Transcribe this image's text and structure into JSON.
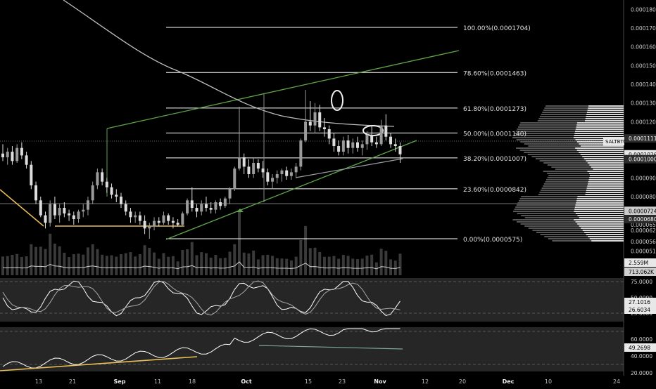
{
  "symbol": "SALTBTC",
  "colors": {
    "background": "#000000",
    "panel_bg": "#262626",
    "panel_dark": "#161616",
    "candle_up": "#9a9a9a",
    "candle_down": "#dddddd",
    "fib_line": "#ffffff",
    "channel": "#5fa64a",
    "yellow_trend": "#e8c05a",
    "ma": "#bdbdbd",
    "grid": "#333333",
    "text": "#d0d0d0"
  },
  "fib_levels": [
    {
      "pct": "100.00%",
      "price": 0.0001704,
      "label": "100.00%(0.0001704)"
    },
    {
      "pct": "78.60%",
      "price": 0.0001463,
      "label": "78.60%(0.0001463)"
    },
    {
      "pct": "61.80%",
      "price": 0.0001273,
      "label": "61.80%(0.0001273)"
    },
    {
      "pct": "50.00%",
      "price": 0.000114,
      "label": "50.00%(0.0001140)"
    },
    {
      "pct": "38.20%",
      "price": 0.0001007,
      "label": "38.20%(0.0001007)"
    },
    {
      "pct": "23.60%",
      "price": 8.42e-05,
      "label": "23.60%(0.0000842)"
    },
    {
      "pct": "0.00%",
      "price": 5.75e-05,
      "label": "0.00%(0.0000575)"
    }
  ],
  "price_axis": {
    "ticks": [
      "0.0001800",
      "0.0001700",
      "0.0001600",
      "0.0001500",
      "0.0001400",
      "0.0001300",
      "0.0001200",
      "0.0000900",
      "0.0000800",
      "0.0000650",
      "0.0000620",
      "0.0000560",
      "0.0000510"
    ],
    "highlight_labels": [
      {
        "text": "0.0001111",
        "value": 0.0001111
      },
      {
        "text": "0.0001026",
        "value": 0.0001026
      },
      {
        "text": "0.0001000",
        "value": 0.0001
      },
      {
        "text": "0.0000724",
        "value": 7.24e-05
      },
      {
        "text": "0.0000680",
        "value": 6.8e-05
      }
    ]
  },
  "volume_axis": {
    "labels": [
      "2.559M",
      "713.062K"
    ]
  },
  "stoch_panel": {
    "ticks": [
      "75.0000",
      "50.0000",
      "25.0000"
    ],
    "badges": [
      "27.1016",
      "26.6034"
    ]
  },
  "rsi_panel": {
    "ticks": [
      "60.0000",
      "40.0000",
      "20.0000"
    ],
    "badges": [
      "49.2698"
    ]
  },
  "time_axis": {
    "labels": [
      "13",
      "21",
      "Sep",
      "11",
      "18",
      "Oct",
      "15",
      "23",
      "Nov",
      "12",
      "20",
      "Dec",
      "10",
      "24"
    ]
  },
  "chart_data": {
    "type": "candlestick",
    "title": "SALTBTC",
    "x_labels": [
      "13",
      "21",
      "Sep",
      "11",
      "18",
      "Oct",
      "15",
      "23",
      "Nov",
      "12",
      "20",
      "Dec",
      "10",
      "24"
    ],
    "y_range": [
      5e-05,
      0.00019
    ],
    "candles": [
      {
        "o": 0.000103,
        "h": 0.000108,
        "l": 9.9e-05,
        "c": 0.000101
      },
      {
        "o": 0.000101,
        "h": 0.000106,
        "l": 9.7e-05,
        "c": 0.000104
      },
      {
        "o": 0.000104,
        "h": 0.000107,
        "l": 9.7e-05,
        "c": 9.9e-05
      },
      {
        "o": 9.9e-05,
        "h": 0.000108,
        "l": 9.8e-05,
        "c": 0.000106
      },
      {
        "o": 0.000106,
        "h": 0.000109,
        "l": 0.0001,
        "c": 0.000102
      },
      {
        "o": 0.000102,
        "h": 0.000104,
        "l": 9.5e-05,
        "c": 9.7e-05
      },
      {
        "o": 9.7e-05,
        "h": 9.9e-05,
        "l": 8.4e-05,
        "c": 8.6e-05
      },
      {
        "o": 8.6e-05,
        "h": 8.8e-05,
        "l": 7.6e-05,
        "c": 7.8e-05
      },
      {
        "o": 7.8e-05,
        "h": 8e-05,
        "l": 6.9e-05,
        "c": 7e-05
      },
      {
        "o": 7e-05,
        "h": 7.2e-05,
        "l": 6.3e-05,
        "c": 6.6e-05
      },
      {
        "o": 6.6e-05,
        "h": 7.8e-05,
        "l": 6.4e-05,
        "c": 7.6e-05
      },
      {
        "o": 7.6e-05,
        "h": 8e-05,
        "l": 6.8e-05,
        "c": 7e-05
      },
      {
        "o": 7e-05,
        "h": 7.6e-05,
        "l": 6.6e-05,
        "c": 7.4e-05
      },
      {
        "o": 7.4e-05,
        "h": 7.7e-05,
        "l": 6.9e-05,
        "c": 7.1e-05
      },
      {
        "o": 7.1e-05,
        "h": 7.3e-05,
        "l": 6.7e-05,
        "c": 7e-05
      },
      {
        "o": 7e-05,
        "h": 7.2e-05,
        "l": 6.5e-05,
        "c": 6.8e-05
      },
      {
        "o": 6.8e-05,
        "h": 7.3e-05,
        "l": 6.6e-05,
        "c": 7.2e-05
      },
      {
        "o": 7.2e-05,
        "h": 7.6e-05,
        "l": 6.9e-05,
        "c": 7.3e-05
      },
      {
        "o": 7.3e-05,
        "h": 8e-05,
        "l": 7e-05,
        "c": 7.8e-05
      },
      {
        "o": 7.8e-05,
        "h": 8.8e-05,
        "l": 7.6e-05,
        "c": 8.6e-05
      },
      {
        "o": 8.6e-05,
        "h": 9.5e-05,
        "l": 8.4e-05,
        "c": 9.3e-05
      },
      {
        "o": 9.3e-05,
        "h": 9.5e-05,
        "l": 8.6e-05,
        "c": 8.8e-05
      },
      {
        "o": 8.8e-05,
        "h": 9e-05,
        "l": 8.2e-05,
        "c": 8.5e-05
      },
      {
        "o": 8.5e-05,
        "h": 8.7e-05,
        "l": 7.9e-05,
        "c": 8.1e-05
      },
      {
        "o": 8.1e-05,
        "h": 8.4e-05,
        "l": 7.7e-05,
        "c": 8e-05
      },
      {
        "o": 8e-05,
        "h": 8.2e-05,
        "l": 7.4e-05,
        "c": 7.6e-05
      },
      {
        "o": 7.6e-05,
        "h": 7.8e-05,
        "l": 7e-05,
        "c": 7.2e-05
      },
      {
        "o": 7.2e-05,
        "h": 7.4e-05,
        "l": 6.6e-05,
        "c": 6.9e-05
      },
      {
        "o": 6.9e-05,
        "h": 7.2e-05,
        "l": 6.6e-05,
        "c": 7e-05
      },
      {
        "o": 7e-05,
        "h": 7.2e-05,
        "l": 6.5e-05,
        "c": 6.7e-05
      },
      {
        "o": 6.7e-05,
        "h": 7e-05,
        "l": 6e-05,
        "c": 6.3e-05
      },
      {
        "o": 6.3e-05,
        "h": 6.6e-05,
        "l": 5.75e-05,
        "c": 6.4e-05
      },
      {
        "o": 6.4e-05,
        "h": 6.9e-05,
        "l": 6.2e-05,
        "c": 6.7e-05
      },
      {
        "o": 6.7e-05,
        "h": 6.9e-05,
        "l": 6.4e-05,
        "c": 6.6e-05
      },
      {
        "o": 6.6e-05,
        "h": 7.2e-05,
        "l": 6.5e-05,
        "c": 7e-05
      },
      {
        "o": 7e-05,
        "h": 7.1e-05,
        "l": 6.5e-05,
        "c": 6.7e-05
      },
      {
        "o": 6.7e-05,
        "h": 6.9e-05,
        "l": 6.3e-05,
        "c": 6.6e-05
      },
      {
        "o": 6.6e-05,
        "h": 6.8e-05,
        "l": 6.4e-05,
        "c": 6.5e-05
      },
      {
        "o": 6.5e-05,
        "h": 7.2e-05,
        "l": 6.4e-05,
        "c": 7.1e-05
      },
      {
        "o": 7.1e-05,
        "h": 7.9e-05,
        "l": 7e-05,
        "c": 7.8e-05
      },
      {
        "o": 7.8e-05,
        "h": 8.5e-05,
        "l": 7.2e-05,
        "c": 7.4e-05
      },
      {
        "o": 7.4e-05,
        "h": 7.6e-05,
        "l": 6.9e-05,
        "c": 7.2e-05
      },
      {
        "o": 7.2e-05,
        "h": 7.8e-05,
        "l": 7e-05,
        "c": 7.6e-05
      },
      {
        "o": 7.6e-05,
        "h": 8e-05,
        "l": 7.2e-05,
        "c": 7.4e-05
      },
      {
        "o": 7.4e-05,
        "h": 7.7e-05,
        "l": 7.1e-05,
        "c": 7.3e-05
      },
      {
        "o": 7.3e-05,
        "h": 7.8e-05,
        "l": 7.1e-05,
        "c": 7.7e-05
      },
      {
        "o": 7.7e-05,
        "h": 7.9e-05,
        "l": 7.3e-05,
        "c": 7.5e-05
      },
      {
        "o": 7.5e-05,
        "h": 8e-05,
        "l": 7.4e-05,
        "c": 7.9e-05
      },
      {
        "o": 7.9e-05,
        "h": 8.5e-05,
        "l": 7.6e-05,
        "c": 8.4e-05
      },
      {
        "o": 8.4e-05,
        "h": 9.6e-05,
        "l": 8.3e-05,
        "c": 9.5e-05
      },
      {
        "o": 9.5e-05,
        "h": 0.000128,
        "l": 9.4e-05,
        "c": 0.000101
      },
      {
        "o": 0.000101,
        "h": 0.000103,
        "l": 9.2e-05,
        "c": 9.6e-05
      },
      {
        "o": 9.6e-05,
        "h": 0.0001,
        "l": 9e-05,
        "c": 9.2e-05
      },
      {
        "o": 9.2e-05,
        "h": 0.000101,
        "l": 9e-05,
        "c": 9.8e-05
      },
      {
        "o": 9.8e-05,
        "h": 0.0001,
        "l": 9.3e-05,
        "c": 9.5e-05
      },
      {
        "o": 9.5e-05,
        "h": 9.9e-05,
        "l": 9e-05,
        "c": 9.3e-05
      },
      {
        "o": 9.3e-05,
        "h": 9.5e-05,
        "l": 8.6e-05,
        "c": 8.8e-05
      },
      {
        "o": 8.8e-05,
        "h": 9.2e-05,
        "l": 8.4e-05,
        "c": 9e-05
      },
      {
        "o": 9e-05,
        "h": 9.4e-05,
        "l": 8.7e-05,
        "c": 9.2e-05
      },
      {
        "o": 9.2e-05,
        "h": 9.5e-05,
        "l": 8.8e-05,
        "c": 9.4e-05
      },
      {
        "o": 9.4e-05,
        "h": 9.6e-05,
        "l": 8.9e-05,
        "c": 9.1e-05
      },
      {
        "o": 9.1e-05,
        "h": 9.5e-05,
        "l": 8.9e-05,
        "c": 9.3e-05
      },
      {
        "o": 9.3e-05,
        "h": 9.8e-05,
        "l": 9e-05,
        "c": 9.6e-05
      },
      {
        "o": 9.6e-05,
        "h": 0.000111,
        "l": 9.4e-05,
        "c": 0.00011
      },
      {
        "o": 0.00011,
        "h": 0.000137,
        "l": 0.000109,
        "c": 0.00012
      },
      {
        "o": 0.00012,
        "h": 0.000131,
        "l": 0.000115,
        "c": 0.000118
      },
      {
        "o": 0.000118,
        "h": 0.00013,
        "l": 0.000114,
        "c": 0.000125
      },
      {
        "o": 0.000125,
        "h": 0.000129,
        "l": 0.000115,
        "c": 0.000117
      },
      {
        "o": 0.000117,
        "h": 0.000122,
        "l": 0.000112,
        "c": 0.000116
      },
      {
        "o": 0.000116,
        "h": 0.000118,
        "l": 0.000108,
        "c": 0.000111
      },
      {
        "o": 0.000111,
        "h": 0.000114,
        "l": 0.000104,
        "c": 0.000107
      },
      {
        "o": 0.000107,
        "h": 0.00011,
        "l": 0.000102,
        "c": 0.000104
      },
      {
        "o": 0.000104,
        "h": 0.000112,
        "l": 0.000102,
        "c": 0.00011
      },
      {
        "o": 0.00011,
        "h": 0.000113,
        "l": 0.000103,
        "c": 0.000106
      },
      {
        "o": 0.000106,
        "h": 0.000111,
        "l": 0.000103,
        "c": 0.000109
      },
      {
        "o": 0.000109,
        "h": 0.000112,
        "l": 0.000104,
        "c": 0.000106
      },
      {
        "o": 0.000106,
        "h": 0.00011,
        "l": 0.000102,
        "c": 0.000108
      },
      {
        "o": 0.000108,
        "h": 0.000115,
        "l": 0.000105,
        "c": 0.000113
      },
      {
        "o": 0.000113,
        "h": 0.000118,
        "l": 0.000107,
        "c": 0.000109
      },
      {
        "o": 0.000109,
        "h": 0.000112,
        "l": 0.000106,
        "c": 0.000108
      },
      {
        "o": 0.000108,
        "h": 0.000121,
        "l": 0.000107,
        "c": 0.000118
      },
      {
        "o": 0.000118,
        "h": 0.000124,
        "l": 0.00011,
        "c": 0.000112
      },
      {
        "o": 0.000112,
        "h": 0.000114,
        "l": 0.000106,
        "c": 0.000108
      },
      {
        "o": 0.000108,
        "h": 0.000111,
        "l": 0.000104,
        "c": 0.000107
      },
      {
        "o": 0.000107,
        "h": 0.000109,
        "l": 9.8e-05,
        "c": 0.0001026
      }
    ]
  }
}
